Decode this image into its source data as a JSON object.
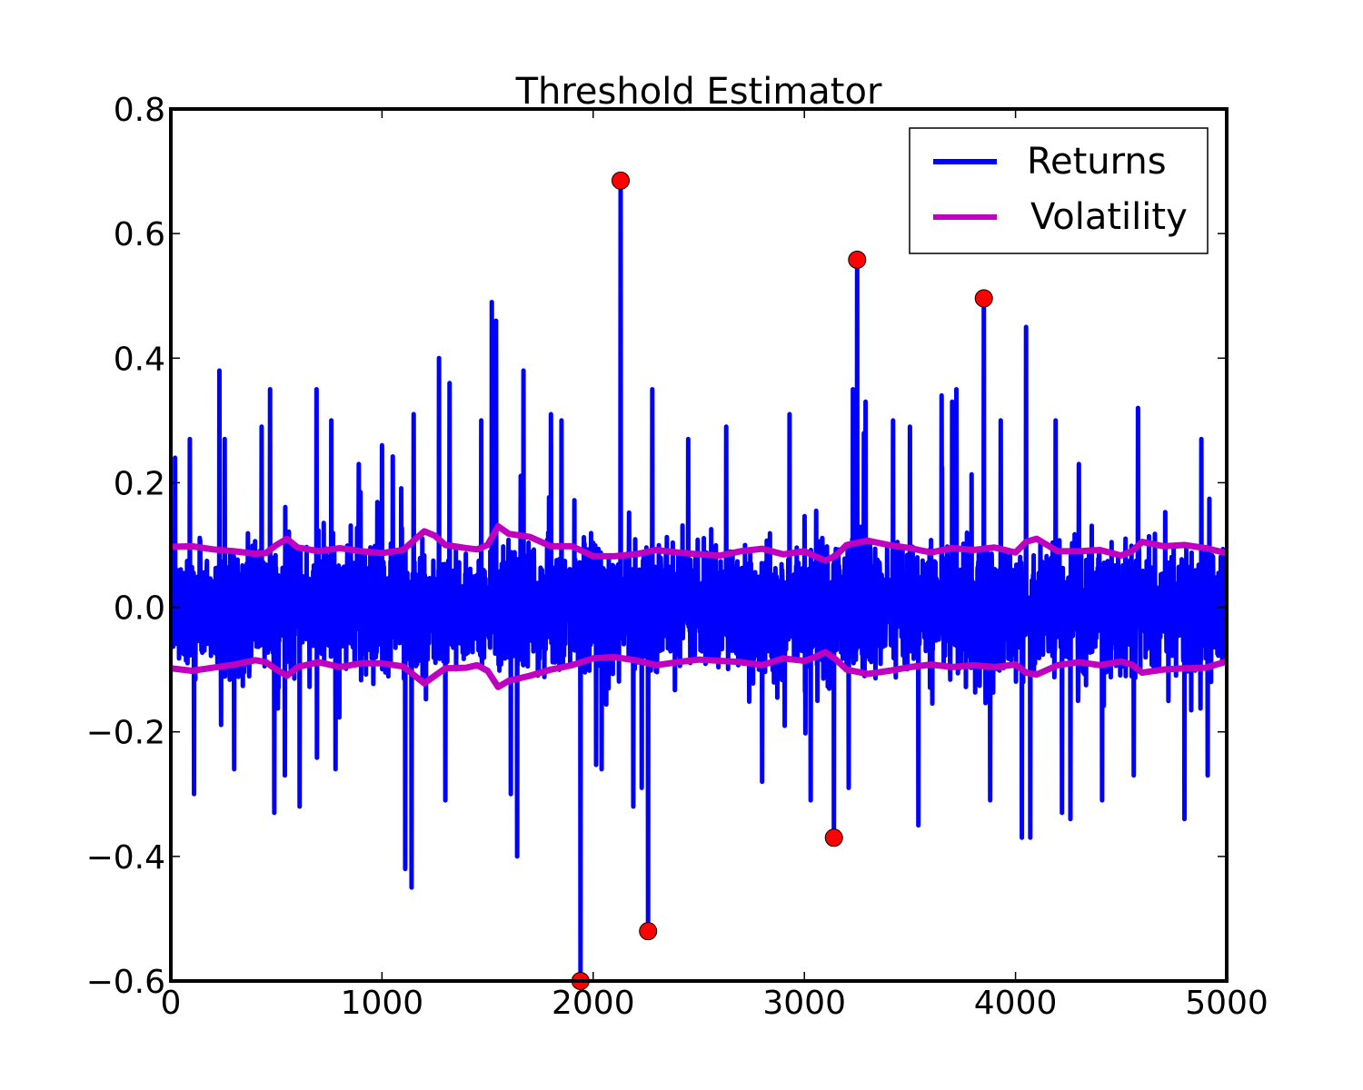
{
  "chart_data": {
    "type": "line",
    "title": "Threshold Estimator",
    "xlabel": "",
    "ylabel": "",
    "xlim": [
      0,
      5000
    ],
    "ylim": [
      -0.6,
      0.8
    ],
    "x_ticks": [
      0,
      1000,
      2000,
      3000,
      4000,
      5000
    ],
    "x_tick_labels": [
      "0",
      "1000",
      "2000",
      "3000",
      "4000",
      "5000"
    ],
    "y_ticks": [
      -0.6,
      -0.4,
      -0.2,
      0.0,
      0.2,
      0.4,
      0.6,
      0.8
    ],
    "y_tick_labels": [
      "−0.6",
      "−0.4",
      "−0.2",
      "0.0",
      "0.2",
      "0.4",
      "0.6",
      "0.8"
    ],
    "grid": false,
    "legend": {
      "position": "top-right",
      "entries": [
        "Returns",
        "Volatility"
      ]
    },
    "colors": {
      "returns": "#0000ff",
      "volatility": "#bf00bf",
      "jumps": "#ff0000"
    },
    "series": [
      {
        "name": "Returns",
        "kind": "noise",
        "n_points": 5000,
        "noise_std": 0.045,
        "spikes": [
          {
            "x": 20,
            "y": 0.24
          },
          {
            "x": 90,
            "y": 0.27
          },
          {
            "x": 110,
            "y": -0.3
          },
          {
            "x": 230,
            "y": 0.38
          },
          {
            "x": 255,
            "y": 0.27
          },
          {
            "x": 300,
            "y": -0.26
          },
          {
            "x": 430,
            "y": 0.29
          },
          {
            "x": 470,
            "y": 0.35
          },
          {
            "x": 490,
            "y": -0.33
          },
          {
            "x": 540,
            "y": -0.27
          },
          {
            "x": 610,
            "y": -0.32
          },
          {
            "x": 690,
            "y": 0.35
          },
          {
            "x": 760,
            "y": 0.3
          },
          {
            "x": 780,
            "y": -0.26
          },
          {
            "x": 890,
            "y": 0.23
          },
          {
            "x": 1000,
            "y": 0.26
          },
          {
            "x": 1110,
            "y": -0.42
          },
          {
            "x": 1140,
            "y": -0.45
          },
          {
            "x": 1150,
            "y": 0.31
          },
          {
            "x": 1270,
            "y": 0.4
          },
          {
            "x": 1300,
            "y": -0.31
          },
          {
            "x": 1320,
            "y": 0.36
          },
          {
            "x": 1470,
            "y": 0.3
          },
          {
            "x": 1520,
            "y": 0.49
          },
          {
            "x": 1540,
            "y": 0.46
          },
          {
            "x": 1610,
            "y": -0.3
          },
          {
            "x": 1640,
            "y": -0.4
          },
          {
            "x": 1670,
            "y": 0.38
          },
          {
            "x": 1800,
            "y": 0.31
          },
          {
            "x": 1850,
            "y": 0.3
          },
          {
            "x": 2040,
            "y": -0.26
          },
          {
            "x": 2190,
            "y": -0.32
          },
          {
            "x": 2230,
            "y": -0.29
          },
          {
            "x": 2280,
            "y": 0.35
          },
          {
            "x": 2450,
            "y": 0.27
          },
          {
            "x": 2630,
            "y": 0.29
          },
          {
            "x": 2800,
            "y": -0.28
          },
          {
            "x": 2930,
            "y": 0.31
          },
          {
            "x": 3030,
            "y": -0.31
          },
          {
            "x": 3210,
            "y": -0.29
          },
          {
            "x": 3230,
            "y": 0.35
          },
          {
            "x": 3290,
            "y": 0.33
          },
          {
            "x": 3420,
            "y": 0.3
          },
          {
            "x": 3500,
            "y": 0.29
          },
          {
            "x": 3540,
            "y": -0.35
          },
          {
            "x": 3650,
            "y": 0.34
          },
          {
            "x": 3700,
            "y": 0.33
          },
          {
            "x": 3720,
            "y": 0.35
          },
          {
            "x": 3880,
            "y": -0.31
          },
          {
            "x": 3930,
            "y": 0.3
          },
          {
            "x": 4030,
            "y": -0.37
          },
          {
            "x": 4050,
            "y": 0.45
          },
          {
            "x": 4070,
            "y": -0.37
          },
          {
            "x": 4190,
            "y": 0.3
          },
          {
            "x": 4220,
            "y": -0.33
          },
          {
            "x": 4260,
            "y": -0.34
          },
          {
            "x": 4300,
            "y": 0.23
          },
          {
            "x": 4410,
            "y": -0.31
          },
          {
            "x": 4560,
            "y": -0.27
          },
          {
            "x": 4580,
            "y": 0.32
          },
          {
            "x": 4800,
            "y": -0.34
          },
          {
            "x": 4880,
            "y": 0.27
          },
          {
            "x": 4910,
            "y": -0.27
          }
        ],
        "jumps": [
          {
            "x": 1940,
            "y": -0.6
          },
          {
            "x": 2130,
            "y": 0.685
          },
          {
            "x": 2260,
            "y": -0.52
          },
          {
            "x": 3140,
            "y": -0.37
          },
          {
            "x": 3250,
            "y": 0.558
          },
          {
            "x": 3850,
            "y": 0.496
          }
        ]
      },
      {
        "name": "Volatility",
        "kind": "band",
        "x": [
          0,
          100,
          200,
          300,
          400,
          450,
          500,
          550,
          600,
          700,
          800,
          900,
          1000,
          1100,
          1200,
          1250,
          1300,
          1400,
          1450,
          1500,
          1550,
          1600,
          1700,
          1800,
          1900,
          2000,
          2100,
          2200,
          2300,
          2400,
          2500,
          2600,
          2700,
          2800,
          2900,
          3000,
          3050,
          3100,
          3150,
          3200,
          3300,
          3400,
          3500,
          3600,
          3700,
          3800,
          3900,
          4000,
          4050,
          4100,
          4200,
          4300,
          4400,
          4500,
          4550,
          4600,
          4700,
          4800,
          4900,
          5000
        ],
        "upper": [
          0.097,
          0.098,
          0.093,
          0.09,
          0.086,
          0.087,
          0.1,
          0.11,
          0.096,
          0.09,
          0.095,
          0.09,
          0.087,
          0.092,
          0.122,
          0.115,
          0.1,
          0.095,
          0.093,
          0.1,
          0.13,
          0.118,
          0.113,
          0.098,
          0.098,
          0.082,
          0.082,
          0.085,
          0.092,
          0.088,
          0.085,
          0.083,
          0.09,
          0.094,
          0.085,
          0.09,
          0.082,
          0.075,
          0.083,
          0.1,
          0.107,
          0.1,
          0.095,
          0.088,
          0.095,
          0.092,
          0.096,
          0.088,
          0.105,
          0.11,
          0.09,
          0.09,
          0.092,
          0.083,
          0.09,
          0.105,
          0.098,
          0.1,
          0.095,
          0.087
        ],
        "lower": [
          -0.098,
          -0.102,
          -0.097,
          -0.092,
          -0.085,
          -0.088,
          -0.1,
          -0.11,
          -0.096,
          -0.088,
          -0.096,
          -0.09,
          -0.09,
          -0.095,
          -0.122,
          -0.11,
          -0.098,
          -0.097,
          -0.093,
          -0.102,
          -0.128,
          -0.118,
          -0.11,
          -0.1,
          -0.093,
          -0.082,
          -0.08,
          -0.085,
          -0.093,
          -0.088,
          -0.084,
          -0.086,
          -0.088,
          -0.093,
          -0.082,
          -0.086,
          -0.08,
          -0.072,
          -0.084,
          -0.1,
          -0.107,
          -0.102,
          -0.096,
          -0.092,
          -0.096,
          -0.093,
          -0.096,
          -0.092,
          -0.105,
          -0.108,
          -0.093,
          -0.088,
          -0.093,
          -0.087,
          -0.092,
          -0.105,
          -0.1,
          -0.098,
          -0.097,
          -0.087
        ]
      }
    ]
  }
}
